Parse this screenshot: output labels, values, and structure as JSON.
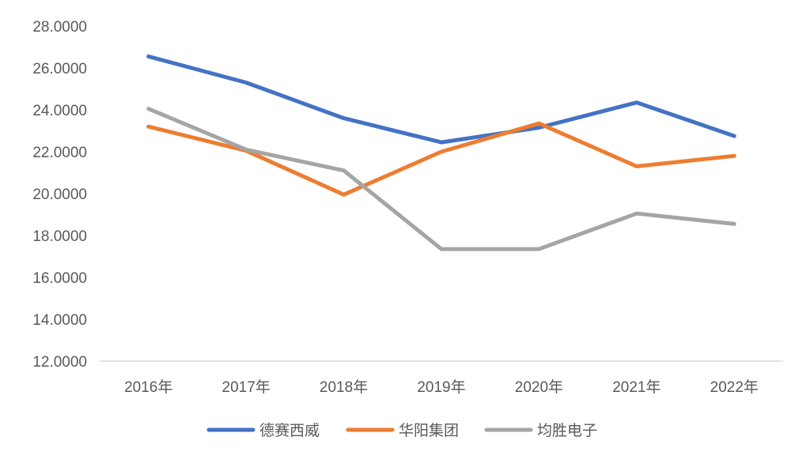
{
  "chart_data": {
    "type": "line",
    "title": "",
    "xlabel": "",
    "ylabel": "",
    "categories": [
      "2016年",
      "2017年",
      "2018年",
      "2019年",
      "2020年",
      "2021年",
      "2022年"
    ],
    "ylim": [
      12,
      28
    ],
    "yticks": [
      "12.0000",
      "14.0000",
      "16.0000",
      "18.0000",
      "20.0000",
      "22.0000",
      "24.0000",
      "26.0000",
      "28.0000"
    ],
    "grid": false,
    "legend_position": "bottom",
    "series": [
      {
        "name": "德赛西威",
        "color": "#4472C4",
        "values": [
          26.55,
          25.3,
          23.6,
          22.45,
          23.15,
          24.35,
          22.75
        ]
      },
      {
        "name": "华阳集团",
        "color": "#ED7D31",
        "values": [
          23.2,
          22.05,
          19.95,
          22.0,
          23.35,
          21.3,
          21.8
        ]
      },
      {
        "name": "均胜电子",
        "color": "#A5A5A5",
        "values": [
          24.05,
          22.1,
          21.1,
          17.35,
          17.35,
          19.05,
          18.55
        ]
      }
    ]
  }
}
